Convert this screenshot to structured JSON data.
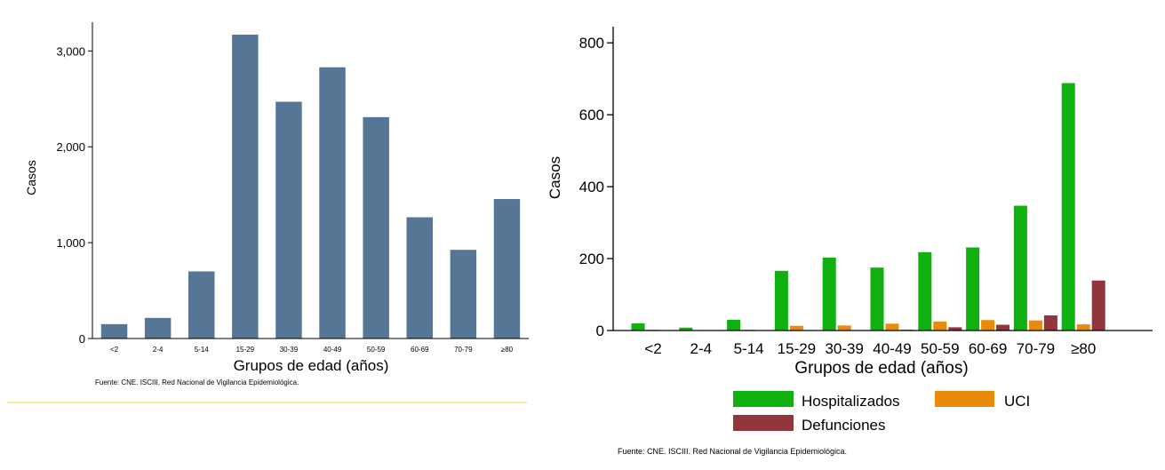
{
  "chart_data": [
    {
      "type": "bar",
      "ylabel": "Casos",
      "xlabel": "Grupos de edad (años)",
      "categories": [
        "<2",
        "2-4",
        "5-14",
        "15-29",
        "30-39",
        "40-49",
        "50-59",
        "60-69",
        "70-79",
        "≥80"
      ],
      "values": [
        150,
        215,
        700,
        3170,
        2470,
        2830,
        2310,
        1265,
        925,
        1455
      ],
      "ylim": [
        0,
        3300
      ],
      "yticks": [
        0,
        1000,
        2000,
        3000
      ],
      "yticklabels": [
        "0",
        "1,000",
        "2,000",
        "3,000"
      ],
      "color": "#557694",
      "source": "Fuente: CNE. ISCIII. Red Nacional de Vigilancia Epidemiológica."
    },
    {
      "type": "bar",
      "ylabel": "Casos",
      "xlabel": "Grupos de edad (años)",
      "categories": [
        "<2",
        "2-4",
        "5-14",
        "15-29",
        "30-39",
        "40-49",
        "50-59",
        "60-69",
        "70-79",
        "≥80"
      ],
      "series": [
        {
          "name": "Hospitalizados",
          "color": "#11b011",
          "values": [
            20,
            8,
            30,
            166,
            203,
            175,
            218,
            231,
            347,
            688
          ]
        },
        {
          "name": "UCI",
          "color": "#e88a0a",
          "values": [
            2,
            1,
            2,
            13,
            14,
            19,
            25,
            29,
            28,
            17
          ]
        },
        {
          "name": "Defunciones",
          "color": "#93353d",
          "values": [
            0,
            0,
            0,
            0,
            1,
            2,
            9,
            16,
            42,
            139
          ]
        }
      ],
      "ylim": [
        0,
        845
      ],
      "yticks": [
        0,
        200,
        400,
        600,
        800
      ],
      "yticklabels": [
        "0",
        "200",
        "400",
        "600",
        "800"
      ],
      "source": "Fuente: CNE. ISCIII. Red Nacional de Vigilancia Epidemiológica."
    }
  ]
}
